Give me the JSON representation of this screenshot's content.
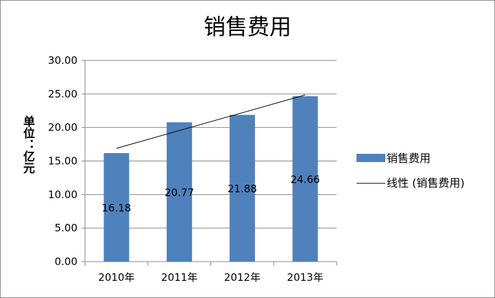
{
  "chart_data": {
    "type": "bar",
    "title": "销售费用",
    "ylabel": "单位：亿元",
    "xlabel": "",
    "categories": [
      "2010年",
      "2011年",
      "2012年",
      "2013年"
    ],
    "series": [
      {
        "name": "销售费用",
        "values": [
          16.18,
          20.77,
          21.88,
          24.66
        ],
        "data_labels": [
          "16.18",
          "20.77",
          "21.88",
          "24.66"
        ],
        "color": "#4f81bd"
      }
    ],
    "trendline": {
      "type": "linear",
      "name": "线性 (销售费用)",
      "color": "#000000"
    },
    "ylim": [
      0,
      30
    ],
    "yticks": [
      "0.00",
      "5.00",
      "10.00",
      "15.00",
      "20.00",
      "25.00",
      "30.00"
    ],
    "grid": true,
    "legend": "right"
  }
}
